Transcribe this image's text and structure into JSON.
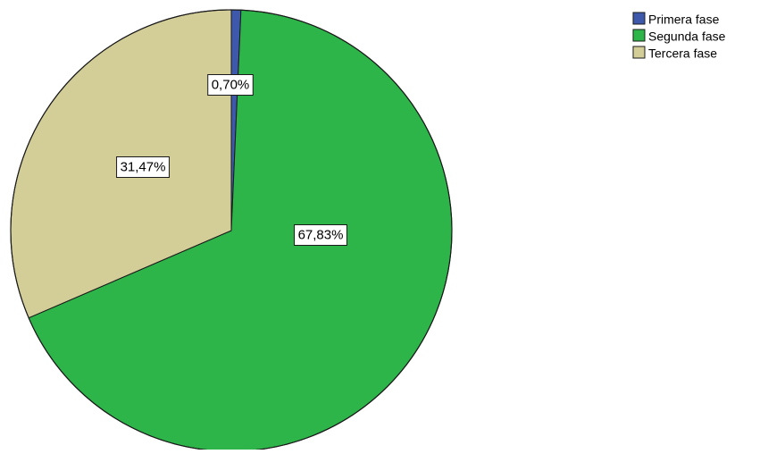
{
  "chart_data": {
    "type": "pie",
    "categories": [
      "Primera fase",
      "Segunda fase",
      "Tercera fase"
    ],
    "values": [
      0.7,
      67.83,
      31.47
    ],
    "data_labels": [
      "0,70%",
      "67,83%",
      "31,47%"
    ],
    "colors": [
      "#3e58ac",
      "#2db54a",
      "#d3ce98"
    ],
    "legend": {
      "entries": [
        "Primera fase",
        "Segunda fase",
        "Tercera fase"
      ],
      "position": "top-right"
    },
    "start_angle": "12 o'clock",
    "direction": "clockwise"
  }
}
